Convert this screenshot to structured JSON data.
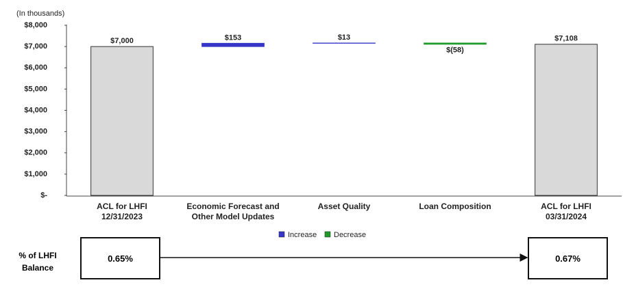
{
  "chart_data": {
    "type": "waterfall",
    "unit_label": "(In thousands)",
    "categories": [
      "ACL for LHFI\n12/31/2023",
      "Economic Forecast and\nOther Model Updates",
      "Asset Quality",
      "Loan Composition",
      "ACL for LHFI\n03/31/2024"
    ],
    "values": [
      7000,
      153,
      13,
      -58,
      7108
    ],
    "value_labels": [
      "$7,000",
      "$153",
      "$13",
      "$(58)",
      "$7,108"
    ],
    "measure": [
      "total",
      "relative",
      "relative",
      "relative",
      "total"
    ],
    "total_color": "#d9d9d9",
    "series": [
      {
        "name": "Increase",
        "color": "#3535c8"
      },
      {
        "name": "Decrease",
        "color": "#1f9a2a"
      }
    ],
    "ylim": [
      0,
      8000
    ],
    "yticks": [
      {
        "value": 0,
        "label": "$-"
      },
      {
        "value": 1000,
        "label": "$1,000"
      },
      {
        "value": 2000,
        "label": "$2,000"
      },
      {
        "value": 3000,
        "label": "$3,000"
      },
      {
        "value": 4000,
        "label": "$4,000"
      },
      {
        "value": 5000,
        "label": "$5,000"
      },
      {
        "value": 6000,
        "label": "$6,000"
      },
      {
        "value": 7000,
        "label": "$7,000"
      },
      {
        "value": 8000,
        "label": "$8,000"
      }
    ],
    "grid": false
  },
  "footer": {
    "label": "% of LHFI\nBalance",
    "start": "0.65%",
    "end": "0.67%"
  }
}
